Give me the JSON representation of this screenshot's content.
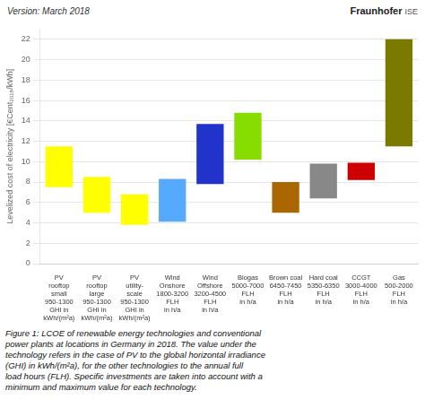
{
  "chart_data": {
    "type": "bar",
    "categories": [
      "PV\nrooftop\nsmall\n950-1300\nGHI in\nkWh/(m²a)",
      "PV\nrooftop\nlarge\n950-1300\nGHI in\nkWh/(m²a)",
      "PV\nutility-\nscale\n950-1300\nGHI in\nkWh/(m²a)",
      "Wind\nOnshore\n1800-3200\nFLH\nin h/a",
      "Wind\nOffshore\n3200-4500\nFLH\nin h/a",
      "Biogas\n5000-7000\nFLH\nin h/a",
      "Brown coal\n6450-7450\nFLH\nin h/a",
      "Hard coal\n5350-6350\nFLH\nin h/a",
      "CCGT\n3000-4000\nFLH\nin h/a",
      "Gas\n500-2000\nFLH\nin h/a"
    ],
    "values": [
      [
        7.5,
        11.5
      ],
      [
        5.0,
        8.5
      ],
      [
        3.8,
        6.8
      ],
      [
        4.1,
        8.3
      ],
      [
        7.8,
        13.7
      ],
      [
        10.2,
        14.8
      ],
      [
        5.0,
        8.0
      ],
      [
        6.4,
        9.8
      ],
      [
        8.2,
        9.9
      ],
      [
        11.5,
        22.0
      ]
    ],
    "colors": [
      "#ffff00",
      "#ffff00",
      "#ffff00",
      "#55aaff",
      "#2233cc",
      "#88dd00",
      "#aa6600",
      "#888888",
      "#cc0000",
      "#7a7a00"
    ],
    "ylabel": "Levelized cost of electricity [€Cent₂₀₁₈/kWh]",
    "ylim": [
      0,
      23
    ],
    "yticks": [
      0,
      2,
      4,
      6,
      8,
      10,
      12,
      14,
      16,
      18,
      20,
      22
    ],
    "grid": true,
    "annotations": [
      "Version: March 2018",
      "Fraunhofer",
      "ISE",
      "Figure 1: LCOE of renewable energy technologies and conventional",
      "power plants at locations in Germany in 2018. The value under the",
      "technology refers in the case of PV to the global horizontal irradiance",
      "(GHI) in kWh/(m²a), for the other technologies to the annual full",
      "load hours (FLH). Specific investments are taken into account with a",
      "minimum and maximum value for each technology."
    ]
  }
}
